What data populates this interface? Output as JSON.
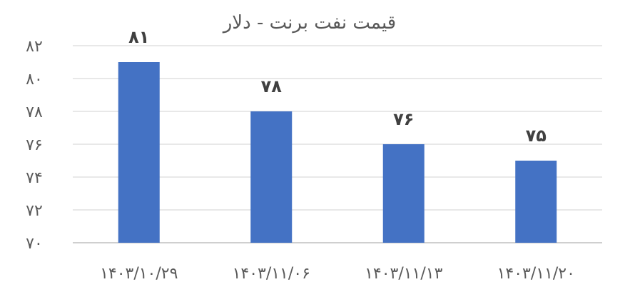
{
  "chart_data": {
    "type": "bar",
    "title": "قیمت نفت برنت - دلار",
    "categories": [
      "۱۴۰۳/۱۰/۲۹",
      "۱۴۰۳/۱۱/۰۶",
      "۱۴۰۳/۱۱/۱۳",
      "۱۴۰۳/۱۱/۲۰"
    ],
    "values": [
      81,
      78,
      76,
      75
    ],
    "data_labels": [
      "۸۱",
      "۷۸",
      "۷۶",
      "۷۵"
    ],
    "ylim": [
      70,
      82
    ],
    "yticks": [
      70,
      72,
      74,
      76,
      78,
      80,
      82
    ],
    "ytick_labels": [
      "۷۰",
      "۷۲",
      "۷۴",
      "۷۶",
      "۷۸",
      "۸۰",
      "۸۲"
    ],
    "grid": true,
    "legend": "none",
    "xlabel": "",
    "ylabel": "",
    "colors": {
      "bar": "#4472c4"
    }
  }
}
